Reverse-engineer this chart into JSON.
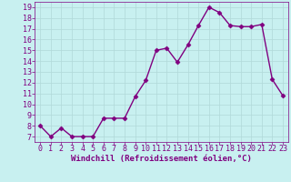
{
  "x": [
    0,
    1,
    2,
    3,
    4,
    5,
    6,
    7,
    8,
    9,
    10,
    11,
    12,
    13,
    14,
    15,
    16,
    17,
    18,
    19,
    20,
    21,
    22,
    23
  ],
  "y": [
    8,
    7,
    7.8,
    7,
    7,
    7,
    8.7,
    8.7,
    8.7,
    10.7,
    12.2,
    15.0,
    15.2,
    13.9,
    15.5,
    17.3,
    19.0,
    18.5,
    17.3,
    17.2,
    17.2,
    17.4,
    12.3,
    10.8
  ],
  "line_color": "#800080",
  "marker": "D",
  "marker_size": 2.5,
  "bg_color": "#c8f0f0",
  "grid_color": "#b0d8d8",
  "xlabel": "Windchill (Refroidissement éolien,°C)",
  "xlabel_color": "#800080",
  "tick_color": "#800080",
  "xlim": [
    -0.5,
    23.5
  ],
  "ylim": [
    6.5,
    19.5
  ],
  "yticks": [
    7,
    8,
    9,
    10,
    11,
    12,
    13,
    14,
    15,
    16,
    17,
    18,
    19
  ],
  "xticks": [
    0,
    1,
    2,
    3,
    4,
    5,
    6,
    7,
    8,
    9,
    10,
    11,
    12,
    13,
    14,
    15,
    16,
    17,
    18,
    19,
    20,
    21,
    22,
    23
  ],
  "tick_fontsize": 6,
  "xlabel_fontsize": 6.5,
  "linewidth": 1.0
}
